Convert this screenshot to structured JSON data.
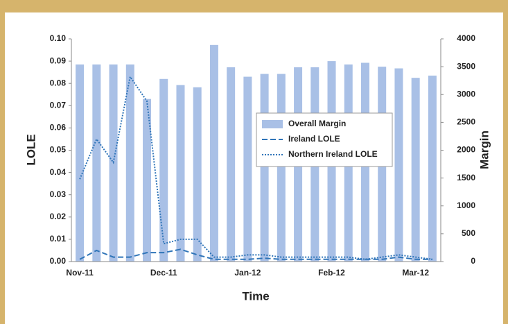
{
  "chart_data": {
    "type": "combo",
    "x_label": "Time",
    "y_label": "LOLE",
    "y2_label": "Margin",
    "categories": [
      "Nov-11",
      null,
      null,
      null,
      null,
      "Dec-11",
      null,
      null,
      null,
      null,
      "Jan-12",
      null,
      null,
      null,
      null,
      "Feb-12",
      null,
      null,
      null,
      null,
      "Mar-12",
      null
    ],
    "ylim": [
      0,
      0.1
    ],
    "yticks": [
      {
        "value": 0,
        "label": "0.00"
      },
      {
        "value": 0.01,
        "label": "0.01"
      },
      {
        "value": 0.02,
        "label": "0.02"
      },
      {
        "value": 0.03,
        "label": "0.03"
      },
      {
        "value": 0.04,
        "label": "0.04"
      },
      {
        "value": 0.05,
        "label": "0.05"
      },
      {
        "value": 0.06,
        "label": "0.06"
      },
      {
        "value": 0.07,
        "label": "0.07"
      },
      {
        "value": 0.08,
        "label": "0.08"
      },
      {
        "value": 0.09,
        "label": "0.09"
      },
      {
        "value": 0.1,
        "label": "0.10"
      }
    ],
    "y2lim": [
      0,
      4000
    ],
    "y2ticks": [
      0,
      500,
      1000,
      1500,
      2000,
      2500,
      3000,
      3500,
      4000
    ],
    "legend": "center-right",
    "series": [
      {
        "name": "Overall Margin",
        "type": "bar",
        "axis": "y2",
        "color": "#a9c0e6",
        "values": [
          3540,
          3540,
          3540,
          3540,
          2920,
          3280,
          3170,
          3130,
          3890,
          3490,
          3320,
          3370,
          3370,
          3490,
          3490,
          3600,
          3540,
          3570,
          3500,
          3470,
          3300,
          3340
        ]
      },
      {
        "name": "Ireland LOLE",
        "type": "line",
        "dash": "dashed",
        "color": "#2f74b8",
        "values": [
          0.001,
          0.005,
          0.002,
          0.002,
          0.004,
          0.004,
          0.0055,
          0.003,
          0.001,
          0.001,
          0.001,
          0.0015,
          0.001,
          0.001,
          0.001,
          0.001,
          0.001,
          0.001,
          0.001,
          0.002,
          0.001,
          0.001
        ]
      },
      {
        "name": "Northern Ireland LOLE",
        "type": "line",
        "dash": "dotted",
        "color": "#2f74b8",
        "values": [
          0.037,
          0.055,
          0.0445,
          0.083,
          0.072,
          0.008,
          0.01,
          0.01,
          0.002,
          0.002,
          0.003,
          0.003,
          0.002,
          0.002,
          0.002,
          0.002,
          0.002,
          0.001,
          0.002,
          0.003,
          0.002,
          0.001
        ]
      }
    ]
  }
}
